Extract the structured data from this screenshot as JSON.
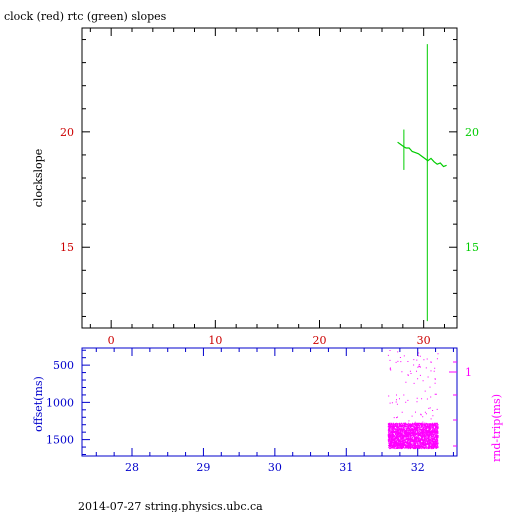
{
  "page": {
    "title": "clock (red) rtc (green) slopes",
    "footer": "2014-07-27 string.physics.ubc.ca"
  },
  "colors": {
    "red": "#cc0000",
    "green": "#00cc00",
    "blue": "#0000cc",
    "magenta": "#ff00ff",
    "black": "#000000"
  },
  "chart_data": [
    {
      "type": "line",
      "title": "clock (red) rtc (green) slopes",
      "xlabel": "",
      "ylabel": "clockslope",
      "xlim": [
        -2.8,
        33.2
      ],
      "ylim": [
        11.5,
        24.5
      ],
      "xticks": [
        0,
        10,
        20,
        30
      ],
      "yticks_left": [
        15,
        20
      ],
      "yticks_right": [
        15,
        20
      ],
      "grid": false,
      "series": [
        {
          "color": "green",
          "x": [
            27.5,
            27.8,
            28.1,
            28.3,
            28.6,
            28.9,
            29.2,
            29.5,
            29.8,
            30.1,
            30.4,
            30.7,
            31.0,
            31.3,
            31.6,
            31.9,
            32.2
          ],
          "y": [
            19.55,
            19.45,
            19.35,
            19.3,
            19.3,
            19.15,
            19.1,
            19.05,
            18.95,
            18.85,
            18.75,
            18.85,
            18.7,
            18.6,
            18.65,
            18.5,
            18.55
          ]
        }
      ],
      "error_bars": [
        {
          "color": "green",
          "x": 28.1,
          "ymin": 18.35,
          "ymax": 20.1
        },
        {
          "color": "green",
          "x": 30.35,
          "ymin": 11.8,
          "ymax": 23.8
        }
      ]
    },
    {
      "type": "scatter",
      "xlabel": "",
      "ylabel_left": "offset(ms)",
      "ylabel_right": "rnd-trip(ms)",
      "xlim": [
        27.3,
        32.55
      ],
      "ylim_left_reversed": [
        270,
        1720
      ],
      "xticks": [
        28,
        29,
        30,
        31,
        32
      ],
      "yticks_left": [
        500,
        1000,
        1500
      ],
      "yticks_right": [
        1
      ],
      "grid": false,
      "series": [
        {
          "color": "magenta",
          "x_range": [
            31.58,
            32.28
          ],
          "dense_band_offset_ms": [
            1280,
            1620
          ],
          "sparse_scatter_offset_ms": [
            300,
            1280
          ]
        }
      ]
    }
  ]
}
